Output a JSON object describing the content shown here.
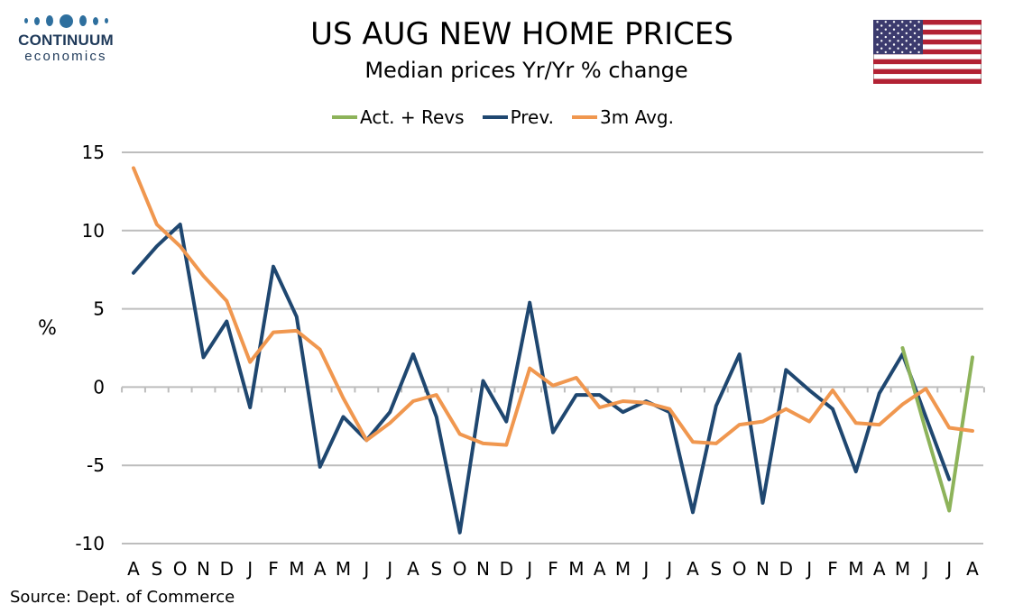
{
  "logo": {
    "name": "CONTINUUM",
    "sub": "economics"
  },
  "title": "US AUG NEW HOME PRICES",
  "subtitle": "Median prices Yr/Yr % change",
  "source": "Source: Dept. of Commerce",
  "flag_icon": "us-flag-icon",
  "colors": {
    "actual": "#8db35a",
    "prev": "#1f4770",
    "avg": "#f0974f",
    "grid": "#bdbdbd",
    "logo": "#2e6f9e"
  },
  "chart_data": {
    "type": "line",
    "categories": [
      "A",
      "S",
      "O",
      "N",
      "D",
      "J",
      "F",
      "M",
      "A",
      "M",
      "J",
      "J",
      "A",
      "S",
      "O",
      "N",
      "D",
      "J",
      "F",
      "M",
      "A",
      "M",
      "J",
      "J",
      "A",
      "S",
      "O",
      "N",
      "D",
      "J",
      "F",
      "M",
      "A",
      "M",
      "J",
      "J",
      "A"
    ],
    "ylabel": "%",
    "ylim": [
      -10,
      15
    ],
    "yticks": [
      15,
      10,
      5,
      0,
      -5,
      -10
    ],
    "grid": true,
    "legend_position": "top-center",
    "series": [
      {
        "name": "Act. + Revs",
        "key": "actual",
        "values": [
          null,
          null,
          null,
          null,
          null,
          null,
          null,
          null,
          null,
          null,
          null,
          null,
          null,
          null,
          null,
          null,
          null,
          null,
          null,
          null,
          null,
          null,
          null,
          null,
          null,
          null,
          null,
          null,
          null,
          null,
          null,
          null,
          null,
          2.5,
          -2.8,
          -7.9,
          1.9
        ]
      },
      {
        "name": "Prev.",
        "key": "prev",
        "values": [
          7.3,
          9.0,
          10.4,
          1.9,
          4.2,
          -1.3,
          7.7,
          4.5,
          -5.1,
          -1.9,
          -3.4,
          -1.6,
          2.1,
          -1.9,
          -9.3,
          0.4,
          -2.2,
          5.4,
          -2.9,
          -0.5,
          -0.5,
          -1.6,
          -0.9,
          -1.6,
          -8.0,
          -1.2,
          2.1,
          -7.4,
          1.1,
          -0.2,
          -1.4,
          -5.4,
          -0.4,
          2.1,
          -1.9,
          -5.9,
          null
        ]
      },
      {
        "name": "3m Avg.",
        "key": "avg",
        "values": [
          14.0,
          10.4,
          9.0,
          7.1,
          5.5,
          1.6,
          3.5,
          3.6,
          2.4,
          -0.7,
          -3.4,
          -2.3,
          -0.9,
          -0.5,
          -3.0,
          -3.6,
          -3.7,
          1.2,
          0.1,
          0.6,
          -1.3,
          -0.9,
          -1.0,
          -1.4,
          -3.5,
          -3.6,
          -2.4,
          -2.2,
          -1.4,
          -2.2,
          -0.2,
          -2.3,
          -2.4,
          -1.1,
          -0.1,
          -2.6,
          -2.8
        ]
      }
    ]
  }
}
